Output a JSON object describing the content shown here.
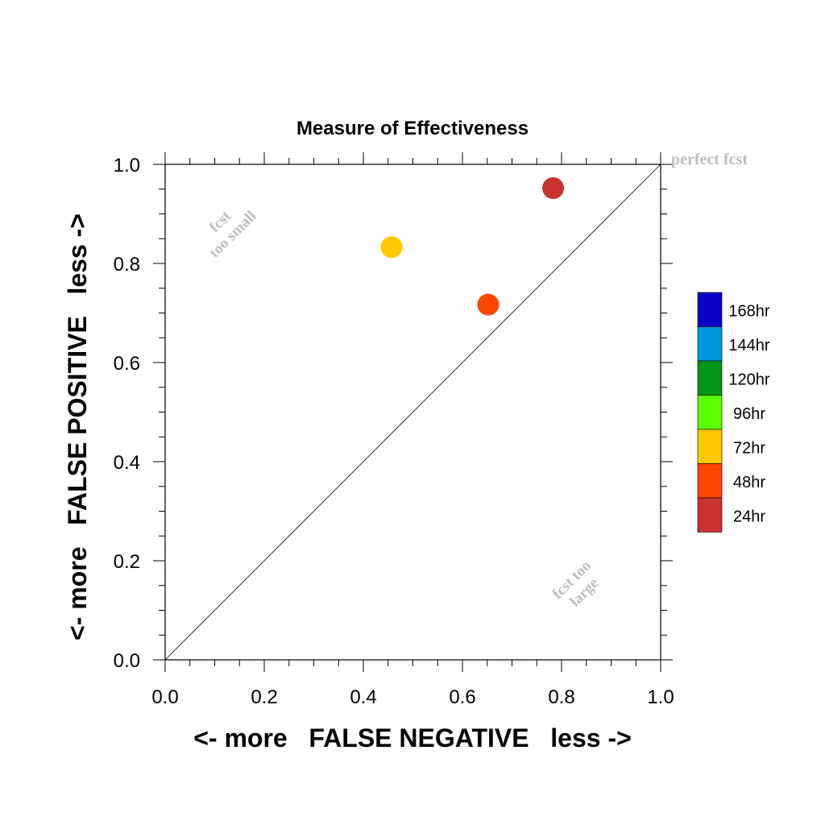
{
  "chart_data": {
    "type": "scatter",
    "title": "Measure of Effectiveness",
    "xlabel": "<- more   FALSE NEGATIVE   less ->",
    "ylabel": "<- more   FALSE POSITIVE   less ->",
    "xlim": [
      0.0,
      1.0
    ],
    "ylim": [
      0.0,
      1.0
    ],
    "x_ticks": [
      "0.0",
      "0.2",
      "0.4",
      "0.6",
      "0.8",
      "1.0"
    ],
    "y_ticks": [
      "0.0",
      "0.2",
      "0.4",
      "0.6",
      "0.8",
      "1.0"
    ],
    "grid": false,
    "diagonal_reference": [
      [
        0.0,
        0.0
      ],
      [
        1.0,
        1.0
      ]
    ],
    "annotations": {
      "perfect": "perfect fcst",
      "small_line1": "fcst",
      "small_line2": "too small",
      "large_line1": "fcst too",
      "large_line2": "large"
    },
    "legend": {
      "placement": "right",
      "entries": [
        {
          "label": "168hr",
          "color": "#0a00c8"
        },
        {
          "label": "144hr",
          "color": "#0096dc"
        },
        {
          "label": "120hr",
          "color": "#009614"
        },
        {
          "label": "96hr",
          "color": "#5aff00"
        },
        {
          "label": "72hr",
          "color": "#ffc800"
        },
        {
          "label": "48hr",
          "color": "#ff4600"
        },
        {
          "label": "24hr",
          "color": "#c83232"
        }
      ]
    },
    "points": [
      {
        "label": "24hr",
        "x": 0.783,
        "y": 0.952,
        "color": "#c83232"
      },
      {
        "label": "72hr",
        "x": 0.457,
        "y": 0.833,
        "color": "#ffc800"
      },
      {
        "label": "48hr",
        "x": 0.652,
        "y": 0.717,
        "color": "#ff4600"
      }
    ]
  }
}
